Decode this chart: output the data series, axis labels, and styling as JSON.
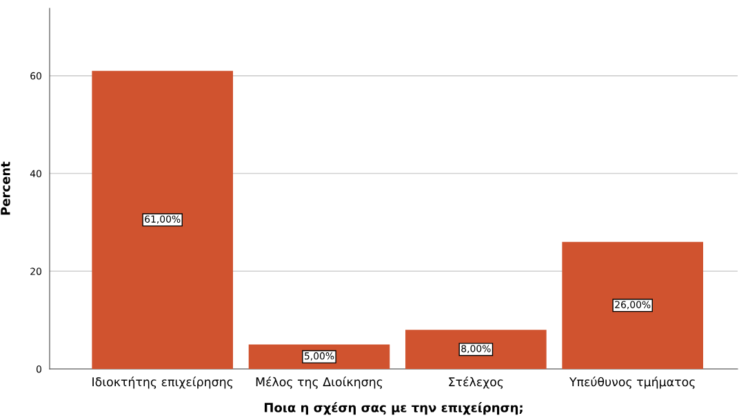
{
  "chart_data": {
    "type": "bar",
    "xlabel": "Ποια η σχέση σας με την επιχείρηση;",
    "ylabel": "Percent",
    "categories": [
      "Ιδιοκτήτης επιχείρησης",
      "Μέλος της Διοίκησης",
      "Στέλεχος",
      "Υπεύθυνος τμήματος"
    ],
    "values": [
      61,
      5,
      8,
      26
    ],
    "value_labels": [
      "61,00%",
      "5,00%",
      "8,00%",
      "26,00%"
    ],
    "color": "#d0532f",
    "ylim": [
      0,
      73.8
    ],
    "yticks": [
      0,
      20,
      40,
      60
    ],
    "grid": "y"
  }
}
